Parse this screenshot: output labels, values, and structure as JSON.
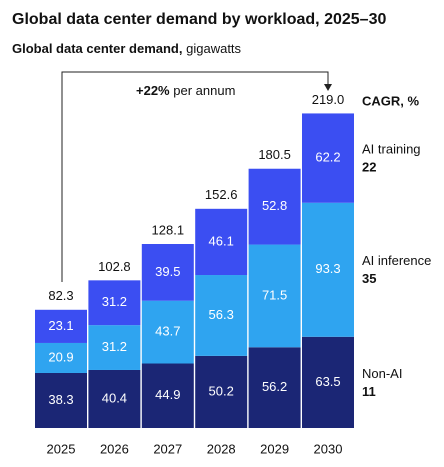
{
  "chart_data": {
    "type": "stacked-bar",
    "title": "Global data center demand by workload, 2025–30",
    "subtitle": "Global data center demand,",
    "unit": "gigawatts",
    "annotation": {
      "bold": "+22%",
      "text": "per annum"
    },
    "cagr_title": "CAGR, %",
    "categories": [
      "2025",
      "2026",
      "2027",
      "2028",
      "2029",
      "2030"
    ],
    "series": [
      {
        "name": "Non-AI",
        "color": "#1b2675",
        "cagr": 11,
        "values": [
          38.3,
          40.4,
          44.9,
          50.2,
          56.2,
          63.5
        ]
      },
      {
        "name": "AI inference",
        "color": "#2fa4f0",
        "cagr": 35,
        "values": [
          20.9,
          31.2,
          43.7,
          56.3,
          71.5,
          93.3
        ]
      },
      {
        "name": "AI training",
        "color": "#3b4ef2",
        "cagr": 22,
        "values": [
          23.1,
          31.2,
          39.5,
          46.1,
          52.8,
          62.2
        ]
      }
    ],
    "totals": {
      "values": [
        82.3,
        102.8,
        128.1,
        152.6,
        180.5,
        219
      ],
      "value_labels": [
        "82.3",
        "102.8",
        "128.1",
        "152.6",
        "180.5",
        "219.0"
      ]
    },
    "ylim": [
      0,
      220
    ]
  }
}
